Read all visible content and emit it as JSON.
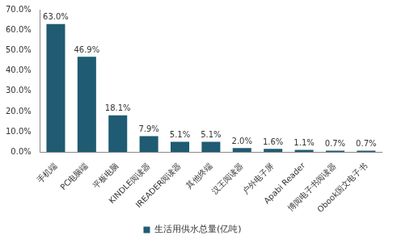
{
  "chart_data": {
    "type": "bar",
    "categories": [
      "手机端",
      "PC电脑端",
      "平板电脑",
      "KINDLE阅读器",
      "IREADER阅读器",
      "其他终端",
      "汉王阅读器",
      "户外电子屏",
      "Apabi Reader",
      "博阅电子书阅读器",
      "Obook国文电子书"
    ],
    "series": [
      {
        "name": "生活用供水总量(亿吨)",
        "color": "#1f5b72",
        "values": [
          63.0,
          46.9,
          18.1,
          7.9,
          5.1,
          5.1,
          2.0,
          1.6,
          1.1,
          0.7,
          0.7
        ],
        "value_labels": [
          "63.0%",
          "46.9%",
          "18.1%",
          "7.9%",
          "5.1%",
          "5.1%",
          "2.0%",
          "1.6%",
          "1.1%",
          "0.7%",
          "0.7%"
        ]
      }
    ],
    "ylim": [
      0,
      70
    ],
    "yticks": [
      {
        "value": 0,
        "label": "0.0%"
      },
      {
        "value": 10,
        "label": "10.0%"
      },
      {
        "value": 20,
        "label": "20.0%"
      },
      {
        "value": 30,
        "label": "30.0%"
      },
      {
        "value": 40,
        "label": "40.0%"
      },
      {
        "value": 50,
        "label": "50.0%"
      },
      {
        "value": 60,
        "label": "60.0%"
      },
      {
        "value": 70,
        "label": "70.0%"
      }
    ],
    "grid": false,
    "data_labels": true,
    "legend": "bottom"
  }
}
